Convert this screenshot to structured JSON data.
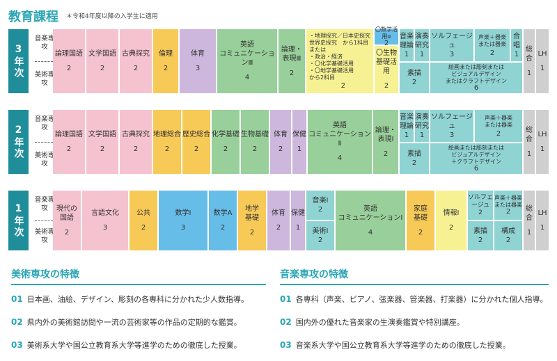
{
  "header": {
    "title": "教育課程",
    "note": "＊令和4年度以降の入学生に適用"
  },
  "majors": {
    "music": "音楽専攻",
    "art": "美術専攻"
  },
  "year3": {
    "label": "3年次",
    "subjects": [
      {
        "name": "論理国語",
        "credits": "2"
      },
      {
        "name": "文学国語",
        "credits": "2"
      },
      {
        "name": "古典探究",
        "credits": "2"
      },
      {
        "name": "倫理",
        "credits": "2"
      },
      {
        "name": "体育",
        "credits": "3"
      },
      {
        "name": "英語\nコミュニケーションⅢ",
        "credits": "4"
      },
      {
        "name": "論理・\n表現Ⅲ",
        "credits": "2"
      },
      {
        "name": "・地理探究／日本史探究\n世界史探究　から1科目\nまたは\n・政治・経済\n・〇化学基礎活用\n・〇地学基礎活用\nから2科目",
        "credits": "2"
      },
      {
        "name": "〇数学活用α",
        "credits": "2"
      },
      {
        "name": "〇生物\n基礎活用",
        "credits": "2"
      },
      {
        "name": "音楽\n理論",
        "credits": "1"
      },
      {
        "name": "演奏\n研究",
        "credits": "1"
      },
      {
        "name": "ソルフェージュ",
        "credits": "3"
      },
      {
        "name": "声楽＋器楽\nまたは器楽",
        "credits": "2"
      },
      {
        "name": "合唱",
        "credits": "1"
      },
      {
        "name": "素描",
        "credits": "2"
      },
      {
        "name": "絵画または彫刻または\nビジュアルデザイン\nまたはクラフトデザイン",
        "credits": "6"
      },
      {
        "name": "総合",
        "credits": "1"
      },
      {
        "name": "LH",
        "credits": "1"
      }
    ]
  },
  "year2": {
    "label": "2年次",
    "subjects": [
      {
        "name": "論理国語",
        "credits": "2"
      },
      {
        "name": "文学国語",
        "credits": "2"
      },
      {
        "name": "古典探究",
        "credits": "2"
      },
      {
        "name": "地理総合",
        "credits": "2"
      },
      {
        "name": "歴史総合",
        "credits": "2"
      },
      {
        "name": "化学基礎",
        "credits": "2"
      },
      {
        "name": "生物基礎",
        "credits": "2"
      },
      {
        "name": "体育",
        "credits": "2"
      },
      {
        "name": "保健",
        "credits": "1"
      },
      {
        "name": "英語\nコミュニケーションⅡ",
        "credits": "4"
      },
      {
        "name": "論理・\n表現Ⅰ",
        "credits": "2"
      },
      {
        "name": "音楽\n理論",
        "credits": "1"
      },
      {
        "name": "演奏\n研究",
        "credits": "1"
      },
      {
        "name": "ソルフェージュ",
        "credits": "3"
      },
      {
        "name": "声楽＋器楽\nまたは器楽",
        "credits": "2"
      },
      {
        "name": "素描",
        "credits": "2"
      },
      {
        "name": "絵画または彫刻または\nビジュアルデザイン\n＋クラフトデザイン",
        "credits": "6"
      },
      {
        "name": "総合",
        "credits": "1"
      },
      {
        "name": "LH",
        "credits": "1"
      }
    ]
  },
  "year1": {
    "label": "1年次",
    "subjects": [
      {
        "name": "現代の\n国語",
        "credits": "2"
      },
      {
        "name": "言語文化",
        "credits": "3"
      },
      {
        "name": "公共",
        "credits": "2"
      },
      {
        "name": "数学Ⅰ",
        "credits": "3"
      },
      {
        "name": "数学A",
        "credits": "2"
      },
      {
        "name": "地学\n基礎",
        "credits": "2"
      },
      {
        "name": "体育",
        "credits": "2"
      },
      {
        "name": "保健",
        "credits": "1"
      },
      {
        "name": "音楽Ⅰ",
        "credits": "2"
      },
      {
        "name": "美術Ⅰ",
        "credits": "2"
      },
      {
        "name": "英語\nコミュニケーションⅠ",
        "credits": "4"
      },
      {
        "name": "家庭\n基礎",
        "credits": "2"
      },
      {
        "name": "情報Ⅰ",
        "credits": "2"
      },
      {
        "name": "ソルフェ\nージュ",
        "credits": "2"
      },
      {
        "name": "声楽＋器楽\nまたは器楽",
        "credits": "2"
      },
      {
        "name": "素描",
        "credits": "2"
      },
      {
        "name": "構成",
        "credits": "2"
      },
      {
        "name": "総合",
        "credits": "1"
      },
      {
        "name": "LH",
        "credits": "1"
      }
    ]
  },
  "art_features": {
    "title": "美術専攻の特徴",
    "items": [
      {
        "num": "01",
        "text": "日本画、油絵、デザイン、彫刻の各専科に分かれた少人数指導。"
      },
      {
        "num": "02",
        "text": "県内外の美術館訪問や一流の芸術家等の作品の定期的な鑑賞。"
      },
      {
        "num": "03",
        "text": "美術系大学や国公立教育系大学等進学のための徹底した授業。"
      }
    ]
  },
  "music_features": {
    "title": "音楽専攻の特徴",
    "items": [
      {
        "num": "01",
        "text": "各専科（声楽、ピアノ、弦楽器、管楽器、打楽器）に分かれた個人指導。"
      },
      {
        "num": "02",
        "text": "国内外の優れた音楽家の生演奏鑑賞や特別講座。"
      },
      {
        "num": "03",
        "text": "音楽系大学や国公立教育系大学等進学のための徹底した授業。"
      }
    ]
  }
}
